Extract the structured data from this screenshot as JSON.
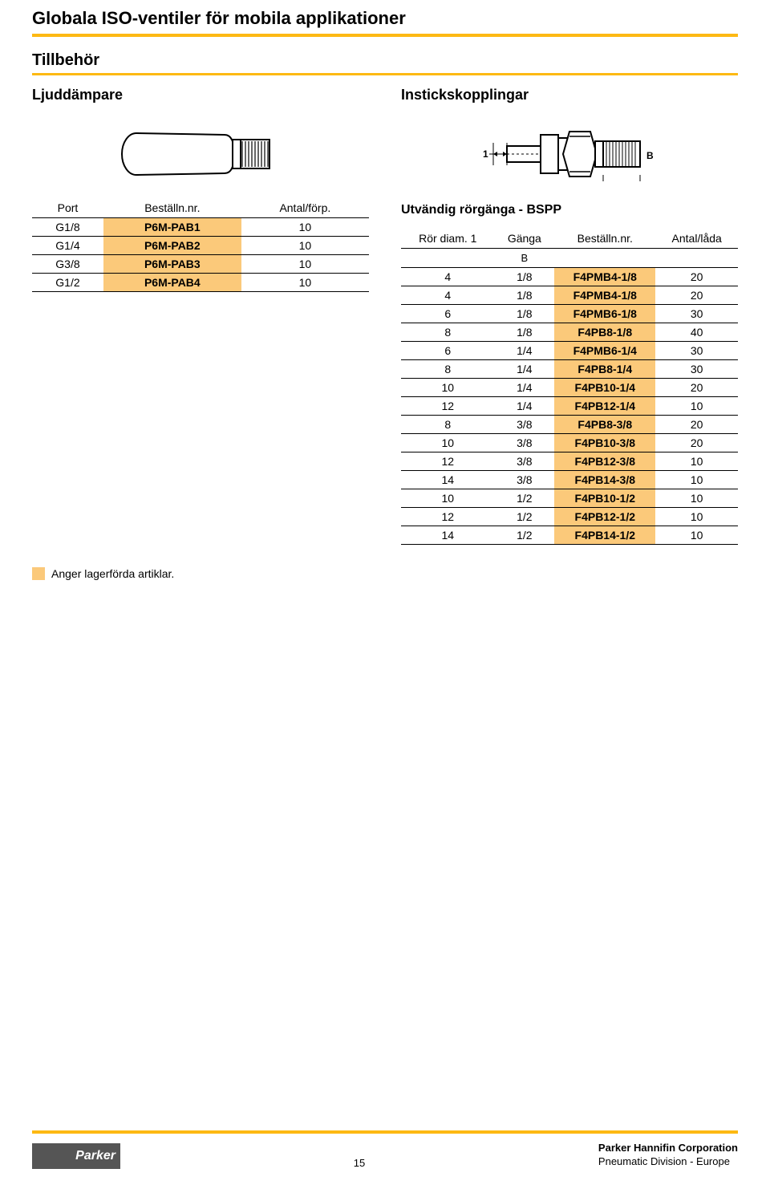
{
  "main_title": "Globala ISO-ventiler för mobila applikationer",
  "section_title": "Tillbehör",
  "left": {
    "heading": "Ljuddämpare",
    "table": {
      "headers": [
        "Port",
        "Beställn.nr.",
        "Antal/förp."
      ],
      "rows": [
        {
          "c0": "G1/8",
          "c1": "P6M-PAB1",
          "c2": "10"
        },
        {
          "c0": "G1/4",
          "c1": "P6M-PAB2",
          "c2": "10"
        },
        {
          "c0": "G3/8",
          "c1": "P6M-PAB3",
          "c2": "10"
        },
        {
          "c0": "G1/2",
          "c1": "P6M-PAB4",
          "c2": "10"
        }
      ]
    }
  },
  "right": {
    "heading": "Instickskopplingar",
    "subtitle": "Utvändig rörgänga - BSPP",
    "dim_label_1": "1",
    "dim_label_B": "B",
    "table": {
      "headers": [
        "Rör diam. 1",
        "Gänga",
        "Beställn.nr.",
        "Antal/låda"
      ],
      "subheader": "B",
      "rows": [
        {
          "c0": "4",
          "c1": "1/8",
          "c2": "F4PMB4-1/8",
          "c3": "20"
        },
        {
          "c0": "4",
          "c1": "1/8",
          "c2": "F4PMB4-1/8",
          "c3": "20"
        },
        {
          "c0": "6",
          "c1": "1/8",
          "c2": "F4PMB6-1/8",
          "c3": "30"
        },
        {
          "c0": "8",
          "c1": "1/8",
          "c2": "F4PB8-1/8",
          "c3": "40"
        },
        {
          "c0": "6",
          "c1": "1/4",
          "c2": "F4PMB6-1/4",
          "c3": "30"
        },
        {
          "c0": "8",
          "c1": "1/4",
          "c2": "F4PB8-1/4",
          "c3": "30"
        },
        {
          "c0": "10",
          "c1": "1/4",
          "c2": "F4PB10-1/4",
          "c3": "20"
        },
        {
          "c0": "12",
          "c1": "1/4",
          "c2": "F4PB12-1/4",
          "c3": "10"
        },
        {
          "c0": "8",
          "c1": "3/8",
          "c2": "F4PB8-3/8",
          "c3": "20"
        },
        {
          "c0": "10",
          "c1": "3/8",
          "c2": "F4PB10-3/8",
          "c3": "20"
        },
        {
          "c0": "12",
          "c1": "3/8",
          "c2": "F4PB12-3/8",
          "c3": "10"
        },
        {
          "c0": "14",
          "c1": "3/8",
          "c2": "F4PB14-3/8",
          "c3": "10"
        },
        {
          "c0": "10",
          "c1": "1/2",
          "c2": "F4PB10-1/2",
          "c3": "10"
        },
        {
          "c0": "12",
          "c1": "1/2",
          "c2": "F4PB12-1/2",
          "c3": "10"
        },
        {
          "c0": "14",
          "c1": "1/2",
          "c2": "F4PB14-1/2",
          "c3": "10"
        }
      ]
    }
  },
  "legend_text": "Anger lagerförda artiklar.",
  "footer": {
    "page_number": "15",
    "corp": "Parker Hannifin Corporation",
    "division": "Pneumatic Division - Europe",
    "logo_text": "Parker"
  },
  "style": {
    "accent_yellow": "#fdb913",
    "highlight_orange": "#fbc97a",
    "text_color": "#000000",
    "bg": "#ffffff"
  }
}
